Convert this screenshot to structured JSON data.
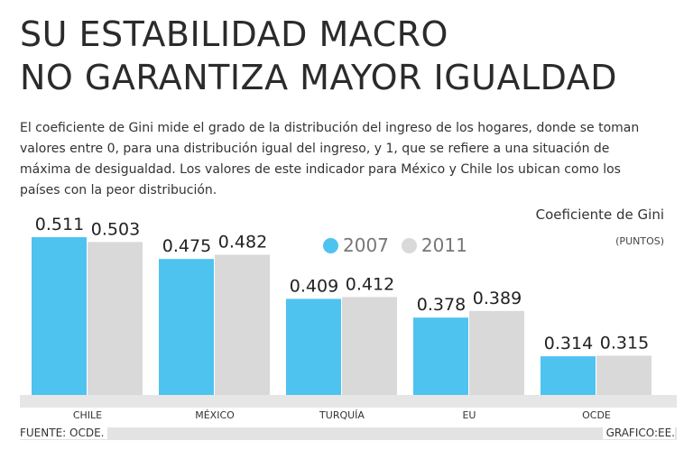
{
  "header": {
    "title_line1": "SU ESTABILIDAD MACRO",
    "title_line2": "NO GARANTIZA MAYOR IGUALDAD",
    "lead": "El coeficiente de Gini mide el grado de la distribución del ingreso de los hogares, donde se toman valores entre 0, para una distribución igual del ingreso, y 1, que se refiere a una situación de máxima de desigualdad. Los valores de este indicador para México y Chile los ubican como los países con la peor distribución."
  },
  "footer": {
    "source": "FUENTE: OCDE.",
    "credit": "GRAFICO:EE."
  },
  "colors": {
    "series_2007": "#4fc3f0",
    "series_2011": "#d9d9d9",
    "baseline": "#cccccc"
  },
  "chart_data": {
    "type": "bar",
    "title": "Coeficiente de Gini",
    "subtitle": "(PUNTOS)",
    "categories": [
      "CHILE",
      "MÉXICO",
      "TURQUÍA",
      "EU",
      "OCDE"
    ],
    "series": [
      {
        "name": "2007",
        "values": [
          0.511,
          0.475,
          0.409,
          0.378,
          0.314
        ]
      },
      {
        "name": "2011",
        "values": [
          0.503,
          0.482,
          0.412,
          0.389,
          0.315
        ]
      }
    ],
    "value_labels": [
      [
        "0.511",
        "0.475",
        "0.409",
        "0.378",
        "0.314"
      ],
      [
        "0.503",
        "0.482",
        "0.412",
        "0.389",
        "0.315"
      ]
    ],
    "ylim": [
      0.25,
      0.52
    ],
    "grid": false,
    "legend": "top-center"
  }
}
